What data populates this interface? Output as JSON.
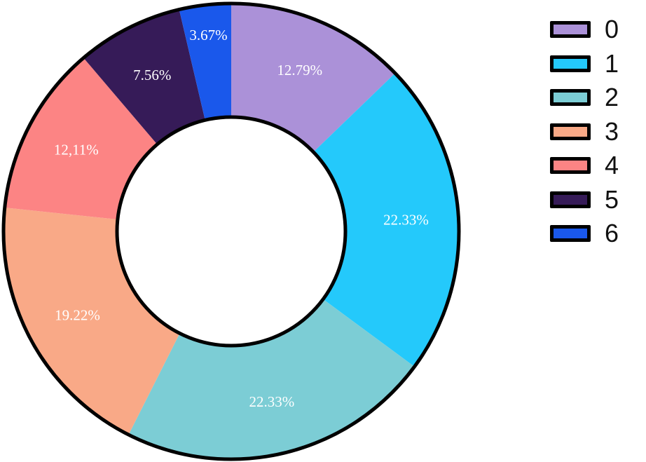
{
  "chart_data": {
    "type": "pie",
    "subtype": "donut",
    "title": "",
    "categories": [
      "0",
      "1",
      "2",
      "3",
      "4",
      "5",
      "6"
    ],
    "values": [
      12.79,
      22.33,
      22.33,
      19.22,
      12.11,
      7.56,
      3.67
    ],
    "labels": [
      "12.79%",
      "22.33%",
      "22.33%",
      "19.22%",
      "12,11%",
      "7.56%",
      "3.67%"
    ],
    "colors": [
      "#AB91D8",
      "#24C9FB",
      "#7CCDD5",
      "#F9A987",
      "#FC8484",
      "#361B58",
      "#1A58EB"
    ],
    "start_angle": "12 o'clock",
    "direction": "clockwise",
    "legend_position": "right"
  },
  "legend": {
    "items": [
      {
        "label": "0",
        "color": "#AB91D8"
      },
      {
        "label": "1",
        "color": "#24C9FB"
      },
      {
        "label": "2",
        "color": "#7CCDD5"
      },
      {
        "label": "3",
        "color": "#F9A987"
      },
      {
        "label": "4",
        "color": "#FC8484"
      },
      {
        "label": "5",
        "color": "#361B58"
      },
      {
        "label": "6",
        "color": "#1A58EB"
      }
    ]
  }
}
